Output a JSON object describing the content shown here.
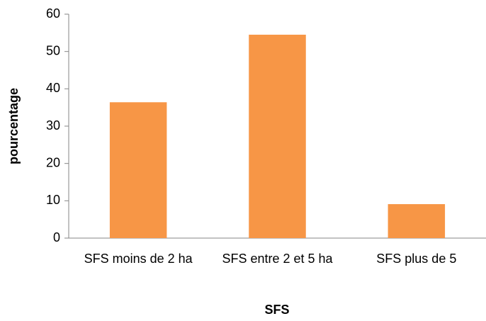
{
  "chart_data": {
    "type": "bar",
    "x_label": "SFS",
    "y_label": "pourcentage",
    "categories": [
      "SFS moins de 2 ha",
      "SFS entre 2 et 5 ha",
      "SFS plus de 5"
    ],
    "values": [
      36.4,
      54.5,
      9.1
    ],
    "color": "#f79646",
    "ylim": [
      0,
      60
    ],
    "yticks": [
      0,
      10,
      20,
      30,
      40,
      50,
      60
    ],
    "grid": false
  }
}
